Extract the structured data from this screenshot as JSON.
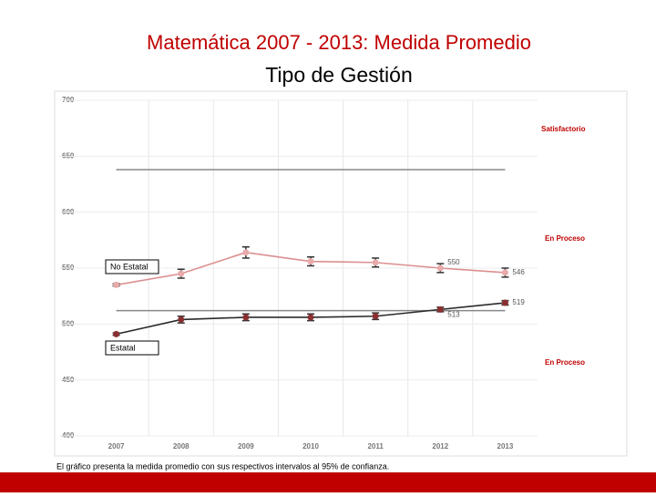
{
  "title": "Matemática 2007 - 2013: Medida Promedio",
  "subtitle": "Tipo de Gestión",
  "footnote": "El gráfico presenta la medida promedio con sus respectivos intervalos al 95% de confianza.",
  "chart_data": {
    "type": "line",
    "categories": [
      "2007",
      "2008",
      "2009",
      "2010",
      "2011",
      "2012",
      "2013"
    ],
    "series": [
      {
        "name": "No Estatal",
        "color": "#dc8f8f",
        "marker_color": "#e8aaaa",
        "values": [
          535,
          545,
          564,
          556,
          555,
          550,
          546
        ],
        "errors": [
          1,
          4,
          5,
          4,
          4,
          4,
          4
        ],
        "value_labels": [
          null,
          null,
          null,
          null,
          null,
          "550",
          "546"
        ]
      },
      {
        "name": "Estatal",
        "color": "#2b2b2b",
        "marker_color": "#8a3030",
        "values": [
          491,
          504,
          506,
          506,
          507,
          513,
          519
        ],
        "errors": [
          1,
          3,
          3,
          3,
          3,
          2,
          2
        ],
        "value_labels": [
          null,
          null,
          null,
          null,
          null,
          "513",
          "519"
        ]
      }
    ],
    "reference_lines": [
      638,
      512
    ],
    "level_labels": [
      "Satisfactorio",
      "En Proceso",
      "En Proceso"
    ],
    "ylim": [
      400,
      700
    ],
    "yticks": [
      400,
      450,
      500,
      550,
      600,
      650,
      700
    ],
    "grid": true
  }
}
